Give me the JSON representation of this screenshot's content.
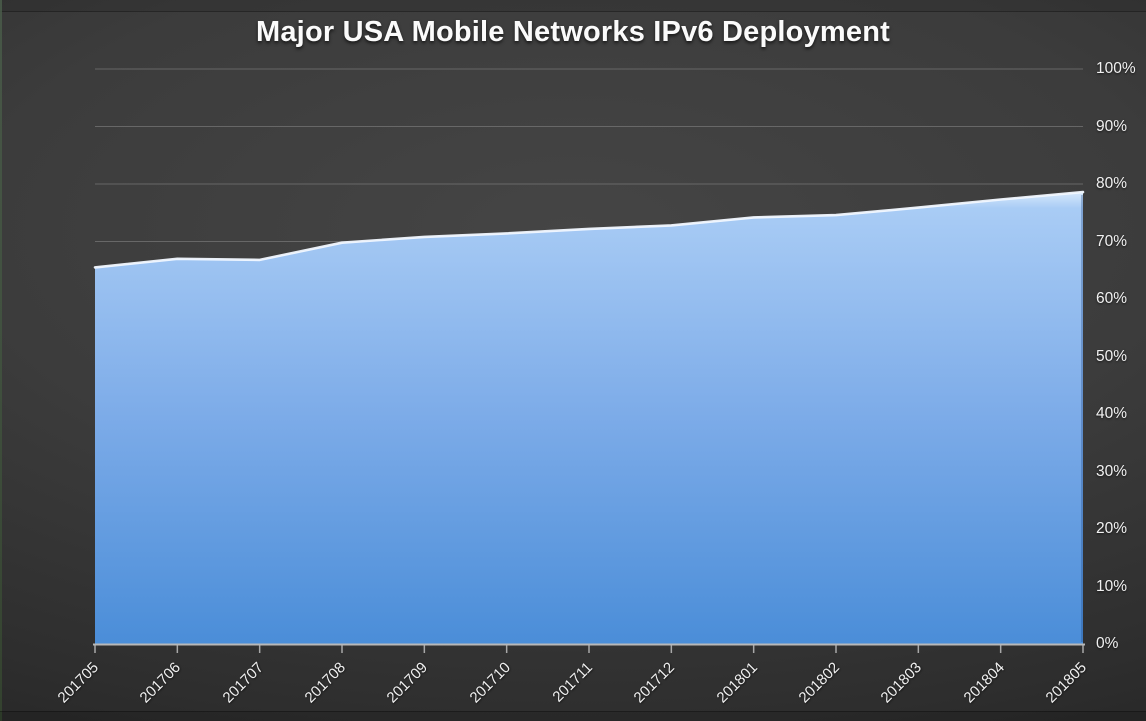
{
  "chart_data": {
    "type": "area",
    "title": "Major USA Mobile Networks IPv6 Deployment",
    "categories": [
      "201705",
      "201706",
      "201707",
      "201708",
      "201709",
      "201710",
      "201711",
      "201712",
      "201801",
      "201802",
      "201803",
      "201804",
      "201805"
    ],
    "values": [
      65.5,
      67.0,
      66.8,
      69.8,
      70.8,
      71.4,
      72.2,
      72.8,
      74.2,
      74.6,
      75.9,
      77.3,
      78.6
    ],
    "xlabel": "",
    "ylabel": "",
    "ylim": [
      0,
      100
    ],
    "y_tick_step": 10,
    "y_tick_labels": [
      "0%",
      "10%",
      "20%",
      "30%",
      "40%",
      "50%",
      "60%",
      "70%",
      "80%",
      "90%",
      "100%"
    ],
    "grid": true,
    "legend_position": "none",
    "colors": {
      "area_top": "#dcecfc",
      "area_upper": "#a9ccf5",
      "area_mid": "#7cabe8",
      "area_bottom": "#4a8dd8",
      "edge_highlight": "#f2f8ff",
      "gridline": "#757575",
      "axis_line": "#b8b8b8",
      "tick": "#a8a8a8",
      "label_text": "#f1f1f1",
      "background_center": "#454545",
      "background_edge": "#1f1f1f"
    }
  }
}
